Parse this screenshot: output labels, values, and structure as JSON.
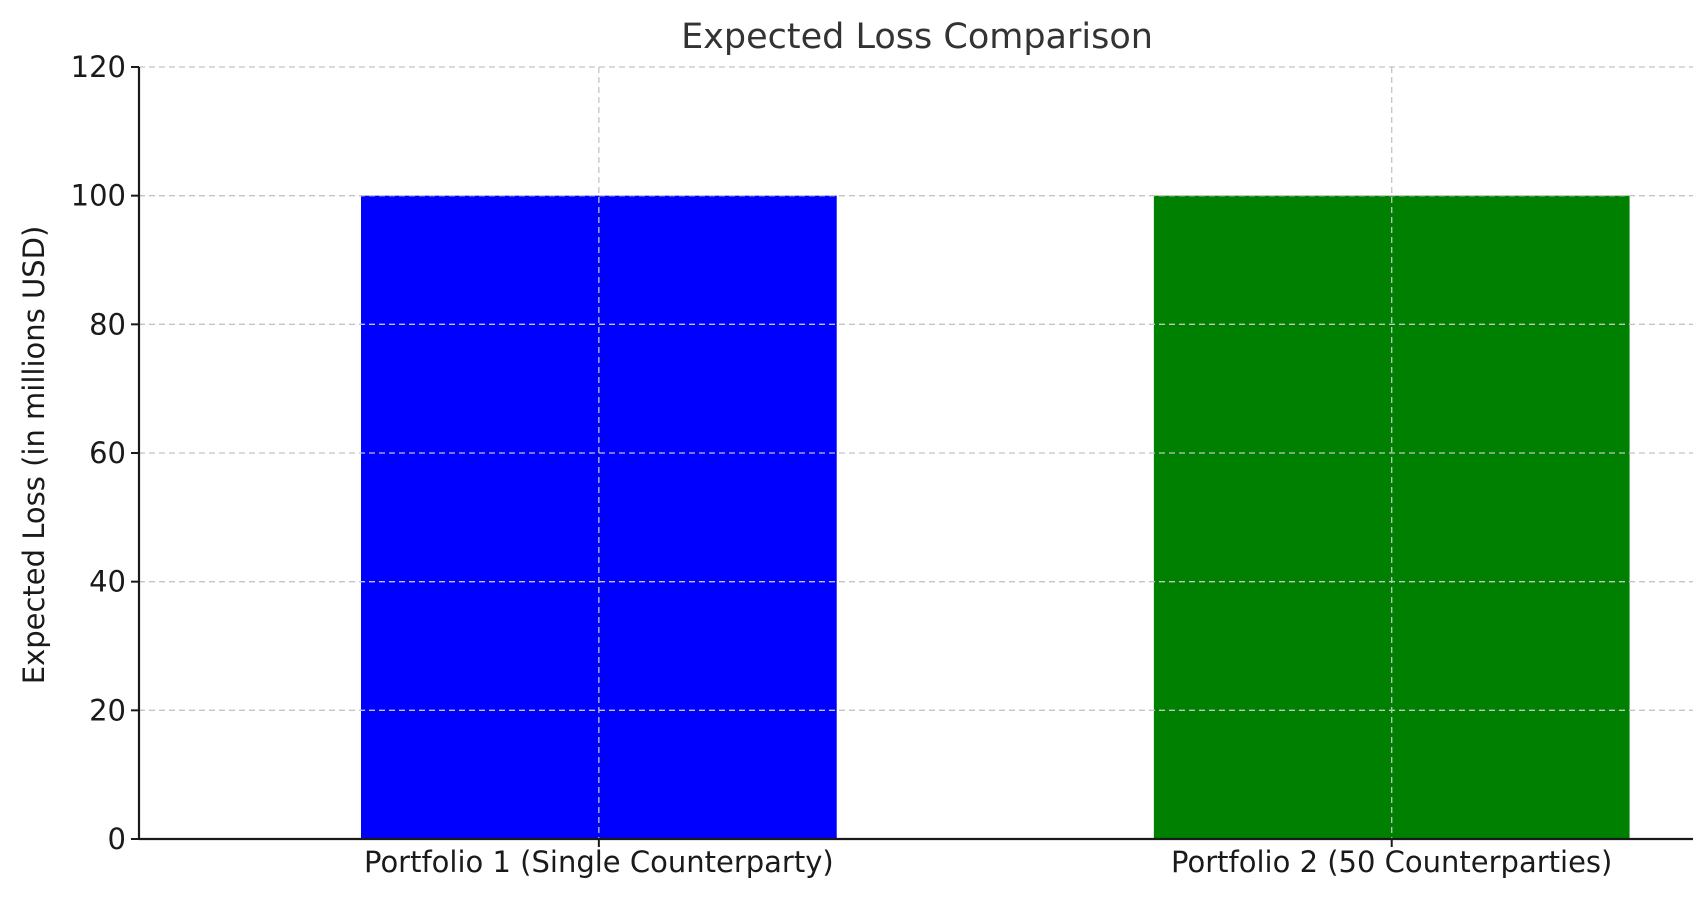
{
  "chart_data": {
    "type": "bar",
    "title": "Expected Loss Comparison",
    "xlabel": "",
    "ylabel": "Expected Loss (in millions USD)",
    "ylim": [
      0,
      120
    ],
    "yticks": [
      "0",
      "20",
      "40",
      "60",
      "80",
      "100",
      "120"
    ],
    "grid": true,
    "categories": [
      "Portfolio 1 (Single Counterparty)",
      "Portfolio 2 (50 Counterparties)"
    ],
    "values": [
      100,
      100
    ],
    "colors": [
      "#0000ff",
      "#008000"
    ]
  }
}
